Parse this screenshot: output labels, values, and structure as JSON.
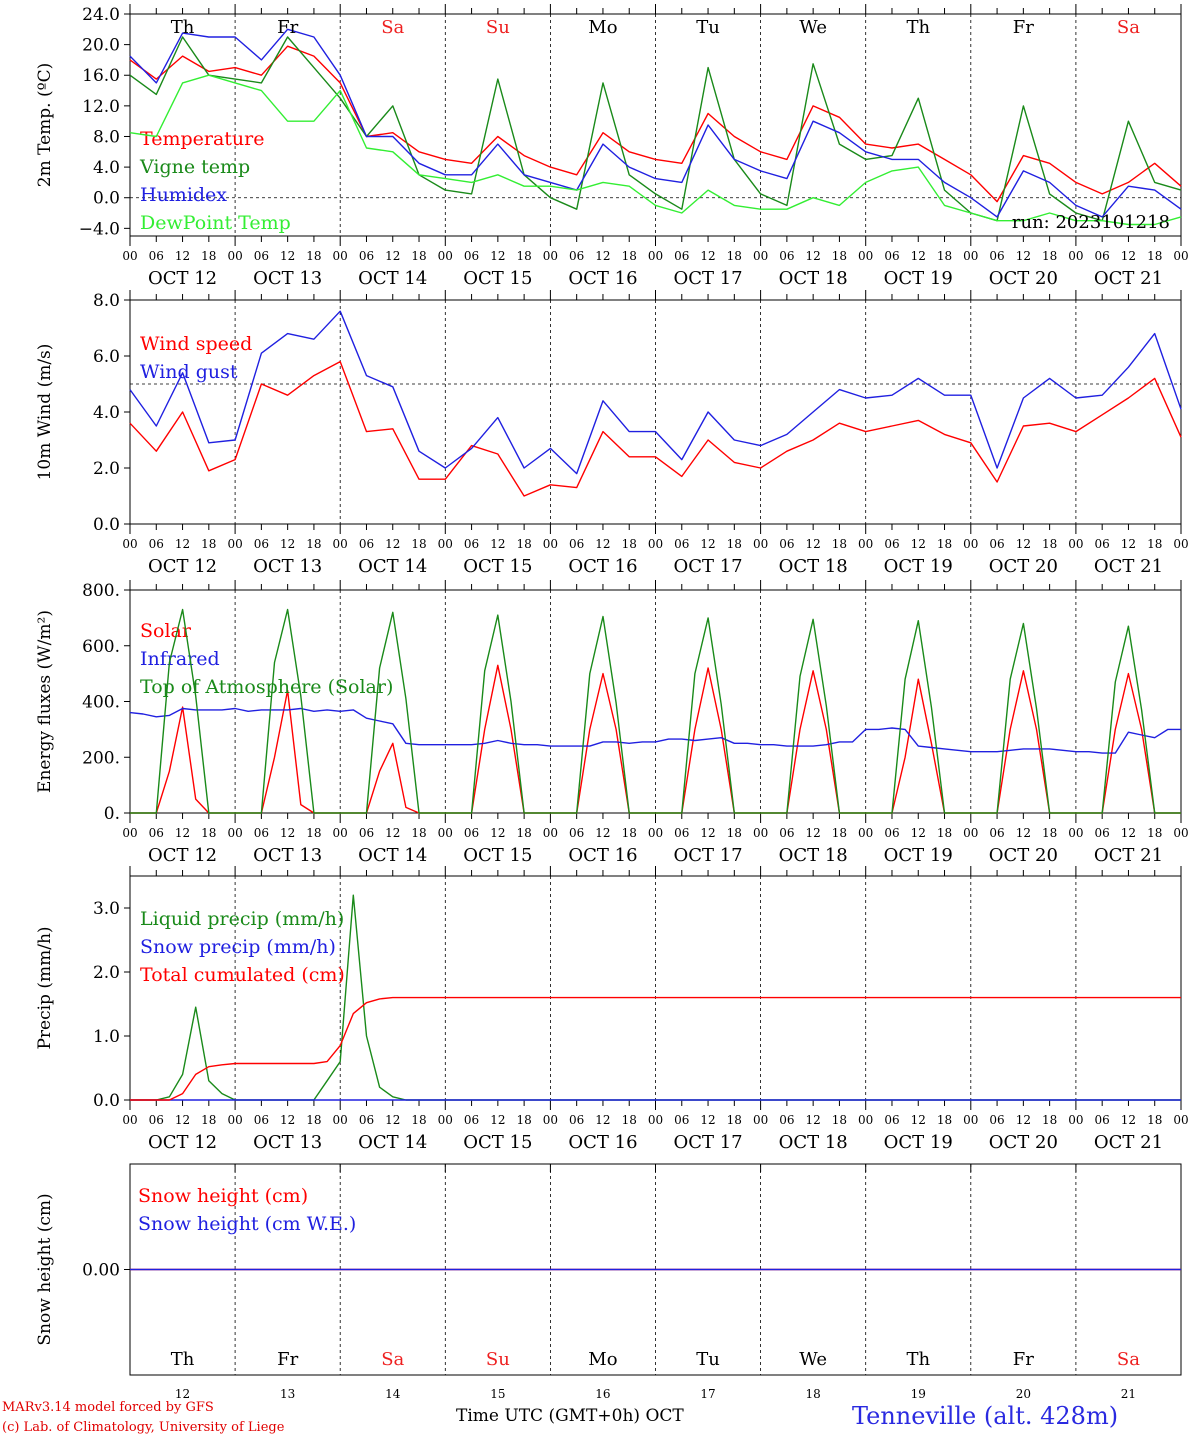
{
  "days": [
    "Th",
    "Fr",
    "Sa",
    "Su",
    "Mo",
    "Tu",
    "We",
    "Th",
    "Fr",
    "Sa"
  ],
  "weekend_days": [
    "Sa",
    "Su"
  ],
  "dates": [
    "OCT 12",
    "OCT 13",
    "OCT 14",
    "OCT 15",
    "OCT 16",
    "OCT 17",
    "OCT 18",
    "OCT 19",
    "OCT 20",
    "OCT 21"
  ],
  "hour_labels": [
    "00",
    "06",
    "12",
    "18"
  ],
  "bottom_day_numbers": [
    "12",
    "13",
    "14",
    "15",
    "16",
    "17",
    "18",
    "19",
    "20",
    "21"
  ],
  "footer": {
    "model": "MARv3.14 model forced by GFS",
    "copyright": "(c) Lab. of Climatology, University of Liege",
    "xlabel": "Time UTC (GMT+0h) OCT",
    "station": "Tenneville (alt. 428m)"
  },
  "chart_data": [
    {
      "type": "line",
      "ylabel": "2m Temp. (ºC)",
      "ylim": [
        -5,
        24
      ],
      "yticks": [
        "24.0",
        "20.0",
        "16.0",
        "12.0",
        "8.0",
        "4.0",
        "0.0",
        "−4.0"
      ],
      "ytick_values": [
        24,
        20,
        16,
        12,
        8,
        4,
        0,
        -4
      ],
      "reference_line": 0,
      "run_label": "run: 2023101218",
      "x_hours": [
        0,
        6,
        12,
        18,
        24,
        30,
        36,
        42,
        48,
        54,
        60,
        66,
        72,
        78,
        84,
        90,
        96,
        102,
        108,
        114,
        120,
        126,
        132,
        138,
        144,
        150,
        156,
        162,
        168,
        174,
        180,
        186,
        192,
        198,
        204,
        210,
        216,
        222,
        228,
        234,
        240
      ],
      "series": [
        {
          "name": "Temperature",
          "color": "#ff0000",
          "values": [
            18.0,
            15.5,
            18.5,
            16.5,
            17.0,
            16.0,
            19.8,
            18.5,
            15.0,
            8.0,
            8.5,
            6.0,
            5.0,
            4.5,
            8.0,
            5.5,
            4.0,
            3.0,
            8.5,
            6.0,
            5.0,
            4.5,
            11.0,
            8.0,
            6.0,
            5.0,
            12.0,
            10.5,
            7.0,
            6.5,
            7.0,
            5.0,
            3.0,
            -0.5,
            5.5,
            4.5,
            2.0,
            0.5,
            2.0,
            4.5,
            1.5
          ]
        },
        {
          "name": "Vigne temp",
          "color": "#1a8a1a",
          "values": [
            16.0,
            13.5,
            21.0,
            16.0,
            15.5,
            15.0,
            21.0,
            17.0,
            13.0,
            8.0,
            12.0,
            3.0,
            1.0,
            0.5,
            15.5,
            3.0,
            0.0,
            -1.5,
            15.0,
            3.0,
            0.5,
            -1.5,
            17.0,
            5.0,
            0.5,
            -1.0,
            17.5,
            7.0,
            5.0,
            5.5,
            13.0,
            1.0,
            -2.0,
            -3.0,
            12.0,
            0.5,
            -2.0,
            -3.0,
            10.0,
            2.0,
            1.0
          ]
        },
        {
          "name": "Humidex",
          "color": "#2020e0",
          "values": [
            18.5,
            15.0,
            21.5,
            21.0,
            21.0,
            18.0,
            22.0,
            21.0,
            16.0,
            8.0,
            8.0,
            4.5,
            3.0,
            3.0,
            7.0,
            3.0,
            2.0,
            1.0,
            7.0,
            4.0,
            2.5,
            2.0,
            9.5,
            5.0,
            3.5,
            2.5,
            10.0,
            8.5,
            6.0,
            5.0,
            5.0,
            2.0,
            0.0,
            -2.5,
            3.5,
            2.0,
            -1.0,
            -2.5,
            1.5,
            1.0,
            -1.5
          ]
        },
        {
          "name": "DewPoint Temp",
          "color": "#33ee33",
          "values": [
            8.5,
            8.0,
            15.0,
            16.0,
            15.0,
            14.0,
            10.0,
            10.0,
            14.0,
            6.5,
            6.0,
            3.0,
            2.5,
            2.0,
            3.0,
            1.5,
            1.5,
            1.0,
            2.0,
            1.5,
            -1.0,
            -2.0,
            1.0,
            -1.0,
            -1.5,
            -1.5,
            0.0,
            -1.0,
            2.0,
            3.5,
            4.0,
            -1.0,
            -2.0,
            -3.0,
            -3.0,
            -2.0,
            -3.0,
            -3.0,
            -3.5,
            -3.5,
            -2.5
          ]
        }
      ]
    },
    {
      "type": "line",
      "ylabel": "10m Wind (m/s)",
      "ylim": [
        0,
        8
      ],
      "yticks": [
        "8.0",
        "6.0",
        "4.0",
        "2.0",
        "0.0"
      ],
      "ytick_values": [
        8,
        6,
        4,
        2,
        0
      ],
      "reference_line": 5,
      "x_hours": [
        0,
        6,
        12,
        18,
        24,
        30,
        36,
        42,
        48,
        54,
        60,
        66,
        72,
        78,
        84,
        90,
        96,
        102,
        108,
        114,
        120,
        126,
        132,
        138,
        144,
        150,
        156,
        162,
        168,
        174,
        180,
        186,
        192,
        198,
        204,
        210,
        216,
        222,
        228,
        234,
        240
      ],
      "series": [
        {
          "name": "Wind speed",
          "color": "#ff0000",
          "values": [
            3.6,
            2.6,
            4.0,
            1.9,
            2.3,
            5.0,
            4.6,
            5.3,
            5.8,
            3.3,
            3.4,
            1.6,
            1.6,
            2.8,
            2.5,
            1.0,
            1.4,
            1.3,
            3.3,
            2.4,
            2.4,
            1.7,
            3.0,
            2.2,
            2.0,
            2.6,
            3.0,
            3.6,
            3.3,
            3.5,
            3.7,
            3.2,
            2.9,
            1.5,
            3.5,
            3.6,
            3.3,
            3.9,
            4.5,
            5.2,
            3.1
          ]
        },
        {
          "name": "Wind gust",
          "color": "#2020e0",
          "values": [
            4.8,
            3.5,
            5.4,
            2.9,
            3.0,
            6.1,
            6.8,
            6.6,
            7.6,
            5.3,
            4.9,
            2.6,
            2.0,
            2.7,
            3.8,
            2.0,
            2.7,
            1.8,
            4.4,
            3.3,
            3.3,
            2.3,
            4.0,
            3.0,
            2.8,
            3.2,
            4.0,
            4.8,
            4.5,
            4.6,
            5.2,
            4.6,
            4.6,
            2.0,
            4.5,
            5.2,
            4.5,
            4.6,
            5.6,
            6.8,
            4.1
          ]
        }
      ]
    },
    {
      "type": "line",
      "ylabel": "Energy fluxes (W/m²)",
      "ylim": [
        0,
        800
      ],
      "yticks": [
        "800.",
        "600.",
        "400.",
        "200.",
        "0."
      ],
      "ytick_values": [
        800,
        600,
        400,
        200,
        0
      ],
      "x_hours": [
        0,
        3,
        6,
        9,
        12,
        15,
        18,
        21,
        24,
        27,
        30,
        33,
        36,
        39,
        42,
        45,
        48,
        51,
        54,
        57,
        60,
        63,
        66,
        69,
        72,
        75,
        78,
        81,
        84,
        87,
        90,
        93,
        96,
        99,
        102,
        105,
        108,
        111,
        114,
        117,
        120,
        123,
        126,
        129,
        132,
        135,
        138,
        141,
        144,
        147,
        150,
        153,
        156,
        159,
        162,
        165,
        168,
        171,
        174,
        177,
        180,
        183,
        186,
        189,
        192,
        195,
        198,
        201,
        204,
        207,
        210,
        213,
        216,
        219,
        222,
        225,
        228,
        231,
        234,
        237,
        240
      ],
      "series": [
        {
          "name": "Solar",
          "color": "#ff0000",
          "values": [
            0,
            0,
            0,
            150,
            380,
            50,
            0,
            0,
            0,
            0,
            0,
            200,
            440,
            30,
            0,
            0,
            0,
            0,
            0,
            150,
            250,
            20,
            0,
            0,
            0,
            0,
            0,
            300,
            530,
            300,
            0,
            0,
            0,
            0,
            0,
            300,
            500,
            300,
            0,
            0,
            0,
            0,
            0,
            300,
            520,
            300,
            0,
            0,
            0,
            0,
            0,
            300,
            510,
            300,
            0,
            0,
            0,
            0,
            0,
            200,
            480,
            250,
            0,
            0,
            0,
            0,
            0,
            300,
            510,
            300,
            0,
            0,
            0,
            0,
            0,
            300,
            500,
            300,
            0,
            0,
            0
          ]
        },
        {
          "name": "Infrared",
          "color": "#2020e0",
          "values": [
            360,
            355,
            345,
            350,
            375,
            370,
            370,
            370,
            375,
            365,
            370,
            370,
            370,
            375,
            365,
            370,
            365,
            370,
            340,
            330,
            320,
            250,
            245,
            245,
            245,
            245,
            245,
            250,
            260,
            250,
            245,
            245,
            240,
            240,
            240,
            240,
            255,
            255,
            250,
            255,
            255,
            265,
            265,
            260,
            265,
            270,
            250,
            250,
            245,
            245,
            240,
            240,
            240,
            245,
            255,
            255,
            300,
            300,
            305,
            300,
            240,
            235,
            230,
            225,
            220,
            220,
            220,
            225,
            230,
            230,
            230,
            225,
            220,
            220,
            215,
            215,
            290,
            280,
            270,
            300,
            300
          ]
        },
        {
          "name": "Top of Atmosphere (Solar)",
          "color": "#1a8a1a",
          "values": [
            0,
            0,
            0,
            540,
            730,
            420,
            0,
            0,
            0,
            0,
            0,
            540,
            730,
            420,
            0,
            0,
            0,
            0,
            0,
            520,
            720,
            410,
            0,
            0,
            0,
            0,
            0,
            510,
            710,
            400,
            0,
            0,
            0,
            0,
            0,
            500,
            705,
            395,
            0,
            0,
            0,
            0,
            0,
            500,
            700,
            390,
            0,
            0,
            0,
            0,
            0,
            490,
            695,
            385,
            0,
            0,
            0,
            0,
            0,
            480,
            690,
            380,
            0,
            0,
            0,
            0,
            0,
            480,
            680,
            375,
            0,
            0,
            0,
            0,
            0,
            470,
            670,
            370,
            0,
            0,
            0
          ]
        }
      ]
    },
    {
      "type": "line",
      "ylabel": "Precip (mm/h)",
      "ylim": [
        0,
        3.5
      ],
      "yticks": [
        "3.0",
        "2.0",
        "1.0",
        "0.0"
      ],
      "ytick_values": [
        3,
        2,
        1,
        0
      ],
      "x_hours": [
        0,
        3,
        6,
        9,
        12,
        15,
        18,
        21,
        24,
        27,
        30,
        33,
        36,
        39,
        42,
        45,
        48,
        51,
        54,
        57,
        60,
        63,
        66,
        69,
        72,
        240
      ],
      "series": [
        {
          "name": "Liquid precip (mm/h)",
          "color": "#1a8a1a",
          "values": [
            0,
            0,
            0,
            0.05,
            0.4,
            1.45,
            0.3,
            0.1,
            0,
            0,
            0,
            0,
            0,
            0,
            0,
            0.3,
            0.6,
            3.2,
            1.0,
            0.2,
            0.05,
            0,
            0,
            0,
            0,
            0
          ]
        },
        {
          "name": "Snow precip (mm/h)",
          "color": "#2020e0",
          "values": [
            0,
            0,
            0,
            0,
            0,
            0,
            0,
            0,
            0,
            0,
            0,
            0,
            0,
            0,
            0,
            0,
            0,
            0,
            0,
            0,
            0,
            0,
            0,
            0,
            0,
            0
          ]
        },
        {
          "name": "Total cumulated (cm)",
          "color": "#ff0000",
          "values": [
            0,
            0,
            0,
            0,
            0.1,
            0.4,
            0.52,
            0.55,
            0.57,
            0.57,
            0.57,
            0.57,
            0.57,
            0.57,
            0.57,
            0.6,
            0.85,
            1.35,
            1.52,
            1.58,
            1.6,
            1.6,
            1.6,
            1.6,
            1.6,
            1.6
          ]
        }
      ]
    },
    {
      "type": "line",
      "ylabel": "Snow height (cm)",
      "ylim": [
        -1,
        1
      ],
      "yticks": [
        "0.00"
      ],
      "ytick_values": [
        0
      ],
      "x_hours": [
        0,
        240
      ],
      "series": [
        {
          "name": "Snow height (cm)",
          "color": "#ff0000",
          "values": [
            0,
            0
          ]
        },
        {
          "name": "Snow height (cm W.E.)",
          "color": "#2020e0",
          "values": [
            0,
            0
          ]
        }
      ]
    }
  ]
}
